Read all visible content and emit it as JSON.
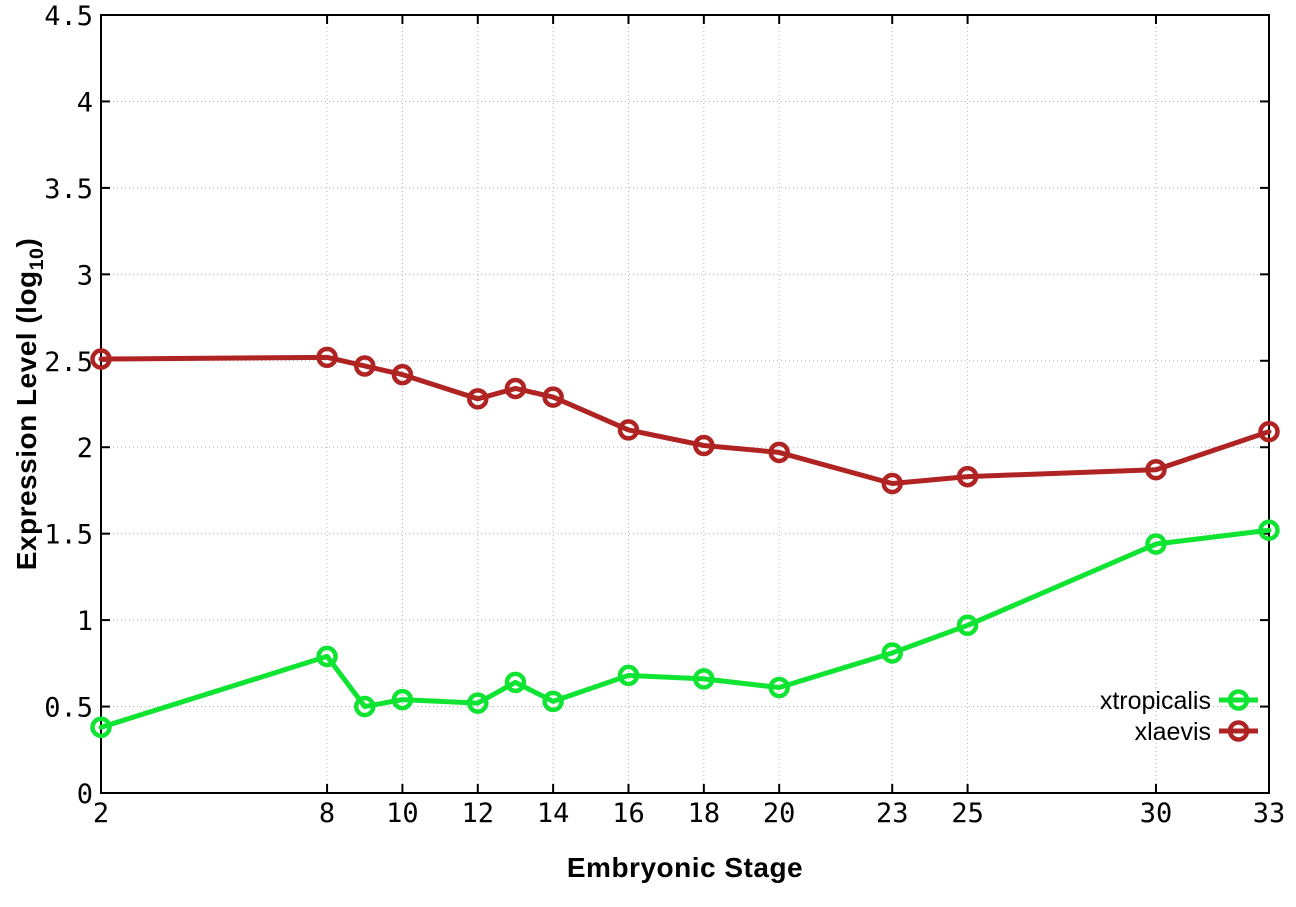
{
  "chart_data": {
    "type": "line",
    "title": "",
    "xlabel": "Embryonic Stage",
    "ylabel": "Expression Level (log10)",
    "ylabel_parts": {
      "pre": "Expression Level (log",
      "sub": "10",
      "post": ")"
    },
    "xlim": [
      2,
      33
    ],
    "ylim": [
      0,
      4.5
    ],
    "x_ticks": [
      2,
      8,
      10,
      12,
      14,
      16,
      18,
      20,
      23,
      25,
      30,
      33
    ],
    "y_ticks": [
      0,
      0.5,
      1,
      1.5,
      2,
      2.5,
      3,
      3.5,
      4,
      4.5
    ],
    "grid": "dotted",
    "legend_position": "inside-lower-right",
    "x": [
      2,
      8,
      9,
      10,
      12,
      13,
      14,
      16,
      18,
      20,
      23,
      25,
      30,
      33
    ],
    "series": [
      {
        "name": "xtropicalis",
        "color": "#0fe433",
        "values": [
          0.38,
          0.79,
          0.5,
          0.54,
          0.52,
          0.64,
          0.53,
          0.68,
          0.66,
          0.61,
          0.81,
          0.97,
          1.44,
          1.52
        ]
      },
      {
        "name": "xlaevis",
        "color": "#b02323",
        "values": [
          2.51,
          2.52,
          2.47,
          2.42,
          2.28,
          2.34,
          2.29,
          2.1,
          2.01,
          1.97,
          1.79,
          1.83,
          1.87,
          2.09
        ]
      }
    ],
    "colors": {
      "axis": "#000000",
      "grid": "#b3b3b3",
      "background": "#ffffff",
      "text": "#000000"
    }
  }
}
